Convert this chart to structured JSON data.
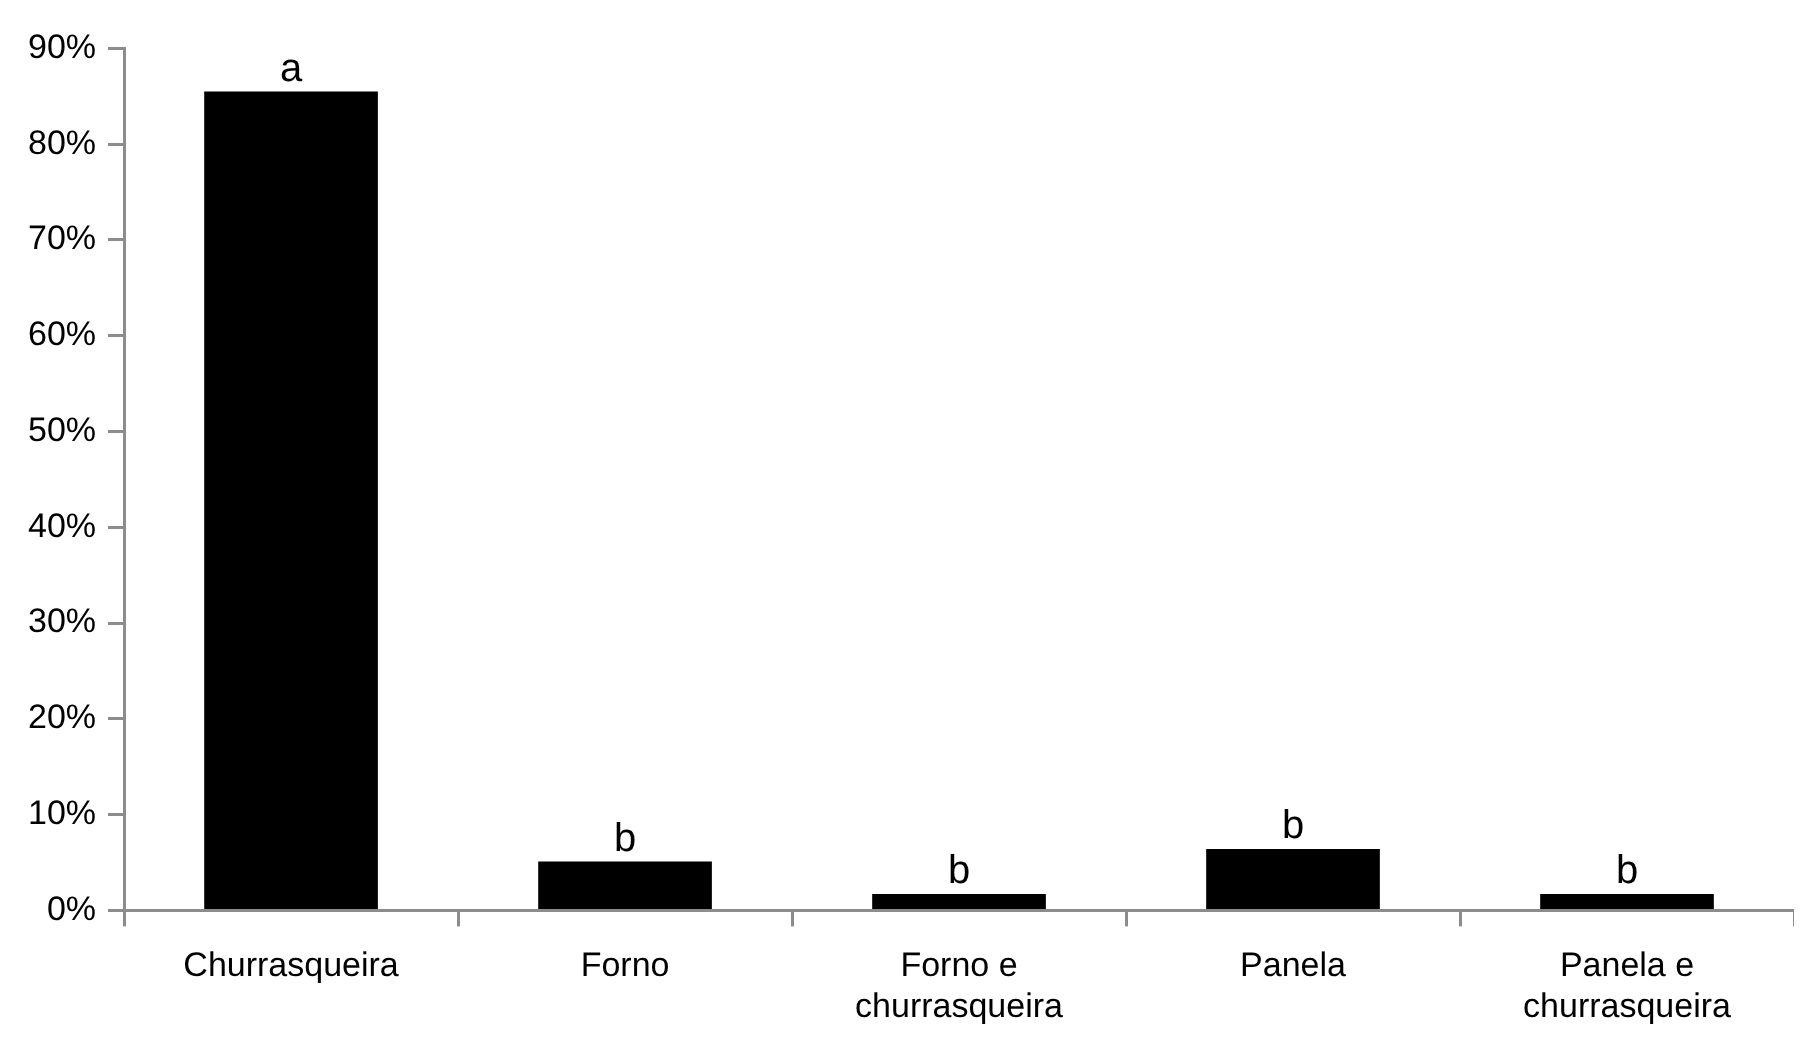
{
  "chart_data": {
    "type": "bar",
    "categories": [
      "Churrasqueira",
      "Forno",
      "Forno e churrasqueira",
      "Panela",
      "Panela e churrasqueira"
    ],
    "values": [
      85.5,
      5.1,
      1.7,
      6.4,
      1.7
    ],
    "color": "#000000",
    "ylim": [
      0,
      90
    ],
    "yticks": [
      {
        "value": 0,
        "label": "0%"
      },
      {
        "value": 10,
        "label": "10%"
      },
      {
        "value": 20,
        "label": "20%"
      },
      {
        "value": 30,
        "label": "30%"
      },
      {
        "value": 40,
        "label": "40%"
      },
      {
        "value": 50,
        "label": "50%"
      },
      {
        "value": 60,
        "label": "60%"
      },
      {
        "value": 70,
        "label": "70%"
      },
      {
        "value": 80,
        "label": "80%"
      },
      {
        "value": 90,
        "label": "90%"
      }
    ],
    "annotations": [
      {
        "text": "a",
        "x": "Churrasqueira",
        "y": 85.5
      },
      {
        "text": "b",
        "x": "Forno",
        "y": 5.1
      },
      {
        "text": "b",
        "x": "Forno e churrasqueira",
        "y": 1.7
      },
      {
        "text": "b",
        "x": "Panela",
        "y": 6.4
      },
      {
        "text": "b",
        "x": "Panela e churrasqueira",
        "y": 1.7
      }
    ],
    "grid": false,
    "legend": false
  }
}
